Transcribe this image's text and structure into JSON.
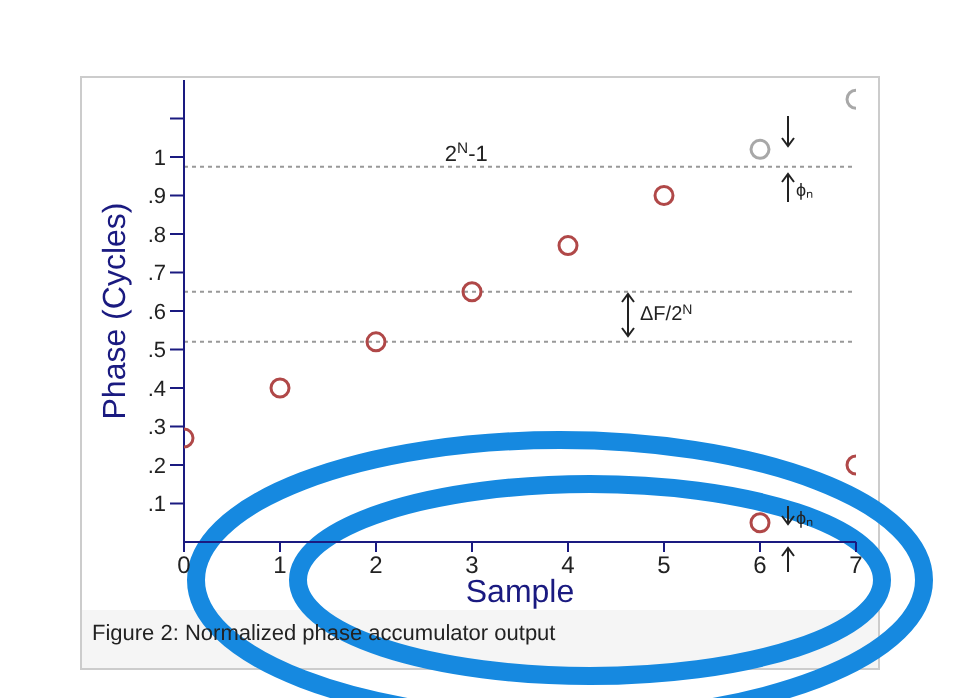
{
  "chart_data": {
    "type": "scatter",
    "xlabel": "Sample",
    "ylabel": "Phase (Cycles)",
    "x": [
      0,
      1,
      2,
      3,
      4,
      5,
      6,
      7
    ],
    "series": [
      {
        "color": "#b04848",
        "values": [
          0.27,
          0.4,
          0.52,
          0.65,
          0.77,
          0.9,
          0.05,
          0.2
        ]
      },
      {
        "color": "#a8a8a8",
        "values": [
          null,
          null,
          null,
          null,
          null,
          null,
          1.02,
          1.15
        ]
      }
    ],
    "xlim": [
      0,
      7
    ],
    "xticks": [
      0,
      1,
      2,
      3,
      4,
      5,
      6,
      7
    ],
    "ylim": [
      0,
      1.2
    ],
    "yticks": [
      {
        "value": 0.1,
        "label": ".1"
      },
      {
        "value": 0.2,
        "label": ".2"
      },
      {
        "value": 0.3,
        "label": ".3"
      },
      {
        "value": 0.4,
        "label": ".4"
      },
      {
        "value": 0.5,
        "label": ".5"
      },
      {
        "value": 0.6,
        "label": ".6"
      },
      {
        "value": 0.7,
        "label": ".7"
      },
      {
        "value": 0.8,
        "label": ".8"
      },
      {
        "value": 0.9,
        "label": ".9"
      },
      1,
      {
        "value": 1.1,
        "label": null
      }
    ],
    "marker": "circle",
    "grid": false,
    "legend": false,
    "ref_lines": [
      {
        "axis": "y",
        "value": 0.975,
        "label": "2$^{N}$-1",
        "color": "#999999",
        "line_style": "dotted"
      },
      {
        "axis": "y",
        "value": 0.65,
        "color": "#999999",
        "line_style": "dotted"
      },
      {
        "axis": "y",
        "value": 0.52,
        "color": "#999999",
        "line_style": "dotted"
      }
    ],
    "annotations": [
      "ΔF/2$^{N}$",
      "ϕₙ",
      "ϕₙ",
      "Figure 2: Normalized phase accumulator output"
    ]
  }
}
